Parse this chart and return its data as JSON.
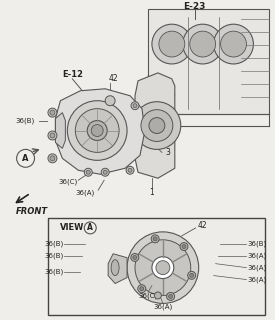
{
  "bg_color": "#f0eeea",
  "line_color": "#555555",
  "text_color": "#222222",
  "figsize": [
    2.75,
    3.2
  ],
  "dpi": 100,
  "labels": {
    "E23": "E-23",
    "E12": "E-12",
    "part42": "42",
    "part36B": "36(B)",
    "part36C": "36(C)",
    "part36A": "36(A)",
    "part1": "1",
    "part3": "3",
    "FRONT": "FRONT",
    "A": "A"
  }
}
